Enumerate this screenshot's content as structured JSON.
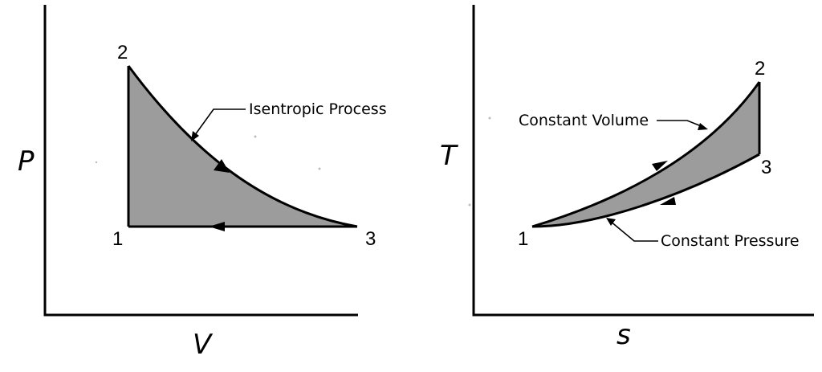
{
  "diagrams": [
    {
      "id": "pv",
      "x_axis_label": "V",
      "y_axis_label": "P",
      "states": [
        "1",
        "2",
        "3"
      ],
      "annotation": "Isentropic Process"
    },
    {
      "id": "ts",
      "x_axis_label": "s",
      "y_axis_label": "T",
      "states": [
        "1",
        "2",
        "3"
      ],
      "annotations": [
        "Constant Volume",
        "Constant Pressure"
      ]
    }
  ],
  "colors": {
    "region_fill": "#9c9c9c",
    "line": "#000000",
    "background": "#ffffff"
  }
}
